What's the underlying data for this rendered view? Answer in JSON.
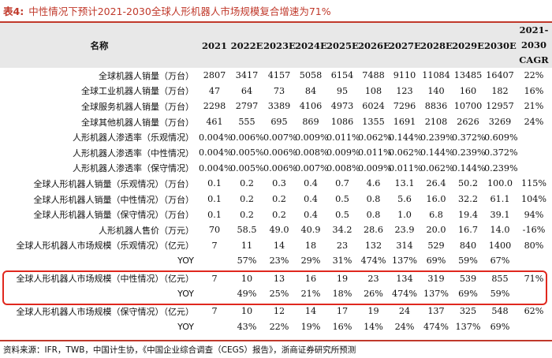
{
  "caption": {
    "label": "表4:",
    "title": "中性情况下预计2021-2030全球人形机器人市场规模复合增速为71%"
  },
  "header": {
    "name": "名称",
    "years": [
      "2021",
      "2022E",
      "2023E",
      "2024E",
      "2025E",
      "2026E",
      "2027E",
      "2028E",
      "2029E",
      "2030E"
    ],
    "cagr": [
      "2021-",
      "2030",
      "CAGR"
    ]
  },
  "rows": [
    {
      "name": "全球机器人销量（万台）",
      "values": [
        "2807",
        "3417",
        "4157",
        "5058",
        "6154",
        "7488",
        "9110",
        "11084",
        "13485",
        "16407",
        "22%"
      ]
    },
    {
      "name": "全球工业机器人销量（万台）",
      "values": [
        "47",
        "64",
        "73",
        "84",
        "95",
        "108",
        "123",
        "140",
        "160",
        "182",
        "16%"
      ]
    },
    {
      "name": "全球服务机器人销量（万台）",
      "values": [
        "2298",
        "2797",
        "3389",
        "4106",
        "4973",
        "6024",
        "7296",
        "8836",
        "10700",
        "12957",
        "21%"
      ]
    },
    {
      "name": "全球其他机器人销量（万台）",
      "values": [
        "461",
        "555",
        "695",
        "869",
        "1086",
        "1355",
        "1691",
        "2108",
        "2626",
        "3269",
        "24%"
      ]
    },
    {
      "name": "人形机器人渗透率（乐观情况）",
      "values": [
        "0.004%",
        "0.006%",
        "0.007%",
        "0.009%",
        "0.011%",
        "0.062%",
        "0.144%",
        "0.239%",
        "0.372%",
        "0.609%",
        ""
      ]
    },
    {
      "name": "人形机器人渗透率（中性情况）",
      "values": [
        "0.004%",
        "0.005%",
        "0.006%",
        "0.008%",
        "0.009%",
        "0.011%",
        "0.062%",
        "0.144%",
        "0.239%",
        "0.372%",
        ""
      ]
    },
    {
      "name": "人形机器人渗透率（保守情况）",
      "values": [
        "0.004%",
        "0.005%",
        "0.006%",
        "0.007%",
        "0.008%",
        "0.009%",
        "0.011%",
        "0.062%",
        "0.144%",
        "0.239%",
        ""
      ]
    },
    {
      "name": "全球人形机器人销量（乐观情况）（万台）",
      "values": [
        "0.1",
        "0.2",
        "0.3",
        "0.4",
        "0.7",
        "4.6",
        "13.1",
        "26.4",
        "50.2",
        "100.0",
        "115%"
      ]
    },
    {
      "name": "全球人形机器人销量（中性情况）（万台）",
      "values": [
        "0.1",
        "0.2",
        "0.2",
        "0.4",
        "0.5",
        "0.8",
        "5.6",
        "16.0",
        "32.2",
        "61.1",
        "104%"
      ]
    },
    {
      "name": "全球人形机器人销量（保守情况）（万台）",
      "values": [
        "0.1",
        "0.2",
        "0.2",
        "0.4",
        "0.5",
        "0.8",
        "1.0",
        "6.8",
        "19.4",
        "39.1",
        "94%"
      ]
    },
    {
      "name": "人形机器人售价（万元）",
      "values": [
        "70",
        "58.5",
        "49.0",
        "40.9",
        "34.2",
        "28.6",
        "23.9",
        "20.0",
        "16.7",
        "14.0",
        "-16%"
      ]
    },
    {
      "name": "全球人形机器人市场规模（乐观情况）（亿元）",
      "values": [
        "7",
        "11",
        "14",
        "18",
        "23",
        "132",
        "314",
        "529",
        "840",
        "1400",
        "80%"
      ]
    },
    {
      "name": "YOY",
      "values": [
        "",
        "57%",
        "23%",
        "29%",
        "31%",
        "474%",
        "137%",
        "69%",
        "59%",
        "67%",
        ""
      ]
    },
    {
      "name": "全球人形机器人市场规模（中性情况）（亿元）",
      "values": [
        "7",
        "10",
        "13",
        "16",
        "19",
        "23",
        "134",
        "319",
        "539",
        "855",
        "71%"
      ]
    },
    {
      "name": "YOY",
      "values": [
        "",
        "49%",
        "25%",
        "21%",
        "18%",
        "26%",
        "474%",
        "137%",
        "69%",
        "59%",
        ""
      ]
    },
    {
      "name": "全球人形机器人市场规模（保守情况）（亿元）",
      "values": [
        "7",
        "10",
        "12",
        "14",
        "17",
        "19",
        "24",
        "137",
        "325",
        "548",
        "62%"
      ]
    },
    {
      "name": "YOY",
      "values": [
        "",
        "43%",
        "22%",
        "19%",
        "16%",
        "14%",
        "24%",
        "474%",
        "137%",
        "69%",
        ""
      ]
    }
  ],
  "source": "资料来源：IFR，TWB，中国计生协，《中国企业综合调查（CEGS）报告》，浙商证券研究所预测",
  "colors": {
    "accent": "#c0392b",
    "highlight_border": "#e0281e",
    "header_bg": "#e8e8e8"
  }
}
